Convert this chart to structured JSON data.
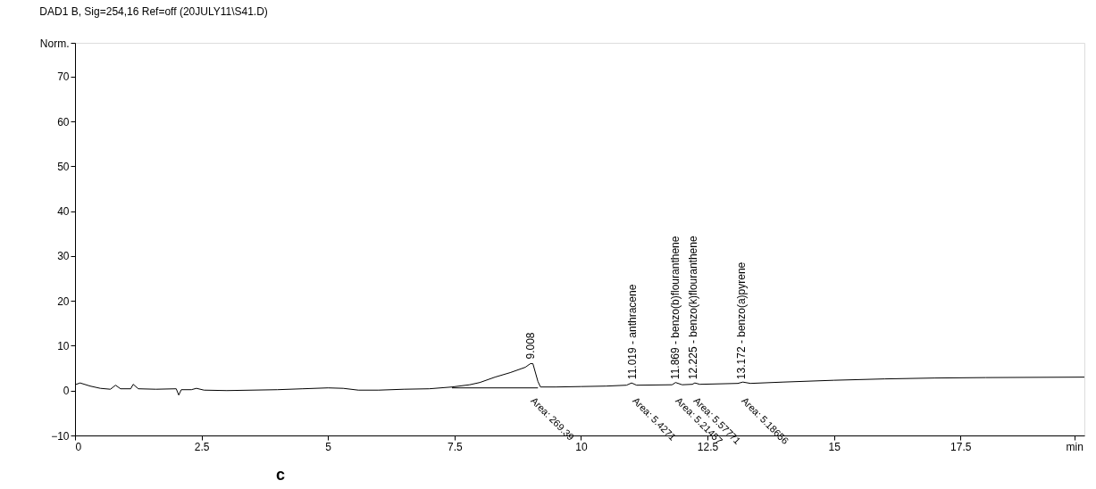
{
  "chart_data": {
    "type": "line",
    "title": "DAD1 B, Sig=254,16 Ref=off (20JULY11\\S41.D)",
    "xlim": [
      0,
      19.95
    ],
    "ylim": [
      -10,
      77.5
    ],
    "xticks": [
      0,
      2.5,
      5,
      7.5,
      10,
      12.5,
      15,
      17.5,
      {
        "value": 19.75,
        "label": "min"
      }
    ],
    "yticks": [
      -10,
      0,
      10,
      20,
      30,
      40,
      50,
      60,
      70,
      {
        "value": 77.5,
        "label": "Norm."
      }
    ],
    "grid": false,
    "marker": "none",
    "line_style": "solid",
    "series": [
      {
        "color": "#000000",
        "x": [
          0,
          0.1,
          0.3,
          0.5,
          0.7,
          0.8,
          0.9,
          1.1,
          1.15,
          1.25,
          1.6,
          2.0,
          2.05,
          2.1,
          2.3,
          2.4,
          2.55,
          3,
          4,
          4.5,
          5,
          5.3,
          5.6,
          6,
          6.5,
          7,
          7.45,
          7.8,
          8.0,
          8.3,
          8.6,
          8.9,
          9.0,
          9.05,
          9.15,
          9.2,
          9.5,
          10,
          10.5,
          10.9,
          11.0,
          11.1,
          11.8,
          11.87,
          12.0,
          12.2,
          12.25,
          12.35,
          13.1,
          13.2,
          13.35,
          14,
          15,
          16,
          17,
          18,
          19.95
        ],
        "values": [
          1.3,
          1.7,
          1.0,
          0.5,
          0.3,
          1.2,
          0.4,
          0.4,
          1.4,
          0.4,
          0.3,
          0.4,
          -1.0,
          0.2,
          0.2,
          0.5,
          0.1,
          0.0,
          0.2,
          0.4,
          0.6,
          0.5,
          0.1,
          0.1,
          0.3,
          0.4,
          0.8,
          1.3,
          1.8,
          3.0,
          4.0,
          5.2,
          6.0,
          6.0,
          2.0,
          0.8,
          0.8,
          0.9,
          1.0,
          1.2,
          1.7,
          1.2,
          1.3,
          1.8,
          1.3,
          1.4,
          1.7,
          1.4,
          1.6,
          1.9,
          1.6,
          1.9,
          2.3,
          2.6,
          2.8,
          2.9,
          3.0
        ]
      },
      {
        "color": "#000000",
        "x": [
          7.45,
          9.15
        ],
        "values": [
          0.6,
          0.6
        ]
      }
    ],
    "annotations": [
      {
        "text": "9.008",
        "x": 9.008,
        "y": 7
      },
      "Area: 269.39",
      {
        "text": "11.019 -  anthracene",
        "x": 11.019,
        "y": 2.5
      },
      "Area: 5.4271",
      {
        "text": "11.869 - benzo(b)flouranthene",
        "x": 11.869,
        "y": 2.5
      },
      "Area: 5.21457",
      {
        "text": "12.225 - benzo(k)flouranthene",
        "x": 12.225,
        "y": 2.5
      },
      "Area: 5.57771",
      {
        "text": "13.172 - benzo(a)pyrene",
        "x": 13.172,
        "y": 2.5
      },
      "Area: 5.18656",
      "c"
    ]
  }
}
